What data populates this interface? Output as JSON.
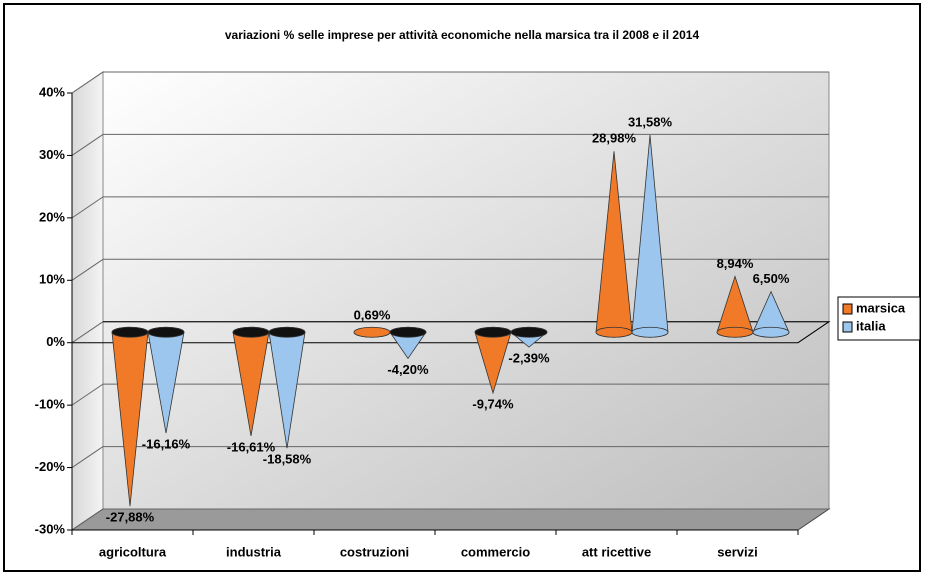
{
  "chart_data": {
    "type": "cone3d",
    "title": "variazioni % selle imprese per attività economiche nella marsica tra il 2008 e il 2014",
    "categories": [
      "agricoltura",
      "industria",
      "costruzioni",
      "commercio",
      "att ricettive",
      "servizi"
    ],
    "series": [
      {
        "name": "marsica",
        "color": "#f07a28",
        "values": [
          -27.88,
          -16.61,
          0.69,
          -9.74,
          28.98,
          8.94
        ],
        "value_labels": [
          "-27,88%",
          "-16,61%",
          "0,69%",
          "-9,74%",
          "28,98%",
          "8,94%"
        ]
      },
      {
        "name": "italia",
        "color": "#9cc6ee",
        "values": [
          -16.16,
          -18.58,
          -4.2,
          -2.39,
          31.58,
          6.5
        ],
        "value_labels": [
          "-16,16%",
          "-18,58%",
          "-4,20%",
          "-2,39%",
          "31,58%",
          "6,50%"
        ]
      }
    ],
    "ylim": [
      -30,
      40
    ],
    "yticks": [
      {
        "value": -30,
        "label": "-30%"
      },
      {
        "value": -20,
        "label": "-20%"
      },
      {
        "value": -10,
        "label": "-10%"
      },
      {
        "value": 0,
        "label": "0%"
      },
      {
        "value": 10,
        "label": "10%"
      },
      {
        "value": 20,
        "label": "20%"
      },
      {
        "value": 30,
        "label": "30%"
      },
      {
        "value": 40,
        "label": "40%"
      }
    ],
    "grid": true,
    "legend": "right"
  }
}
